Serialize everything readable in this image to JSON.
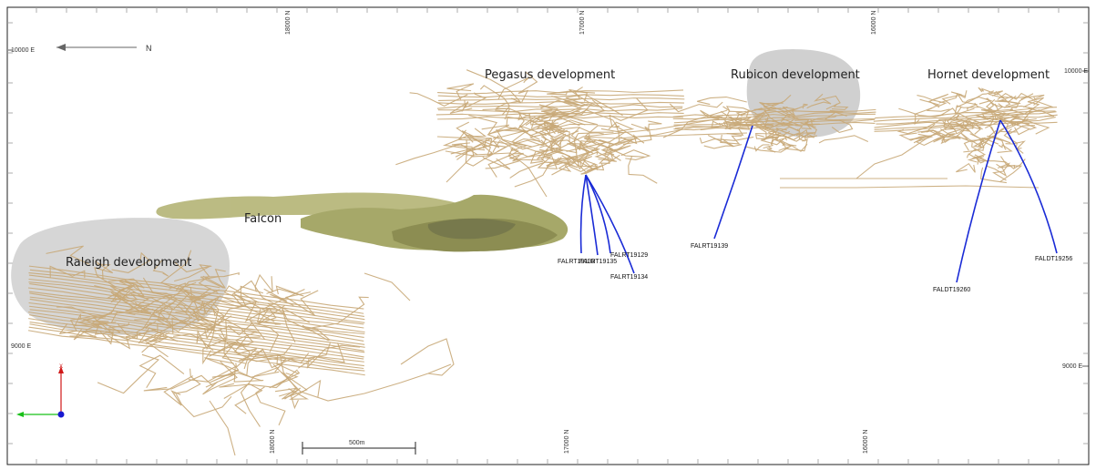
{
  "north_arrow": {
    "label": "N"
  },
  "labels": {
    "pegasus": "Pegasus development",
    "rubicon": "Rubicon development",
    "hornet": "Hornet development",
    "falcon": "Falcon",
    "raleigh": "Raleigh development"
  },
  "drillholes": {
    "h1": "FALRT19129",
    "h2": "FALRT19133",
    "h3": "FALRT19135",
    "h4": "FALRT19134",
    "h5": "FALRT19139",
    "h6": "FALDT19256",
    "h7": "FALDT19260"
  },
  "grid": {
    "left_top": "10000 E",
    "left_mid": "9000 E",
    "right_top": "10000 E",
    "right_mid": "9000 E",
    "top_1": "18000 N",
    "top_2": "17000 N",
    "top_3": "16000 N",
    "bot_1": "18000 N",
    "bot_2": "17000 N",
    "bot_3": "16000 N"
  },
  "scale_bar": {
    "label": "500m"
  },
  "colors": {
    "tunnels": "#c8a878",
    "drillholes": "#1a2bd6",
    "falcon_body": "#8a8c3a",
    "envelope": "#c8c8c8",
    "axis_x": "#d01818",
    "axis_y": "#18c018",
    "axis_z": "#1818d0"
  }
}
